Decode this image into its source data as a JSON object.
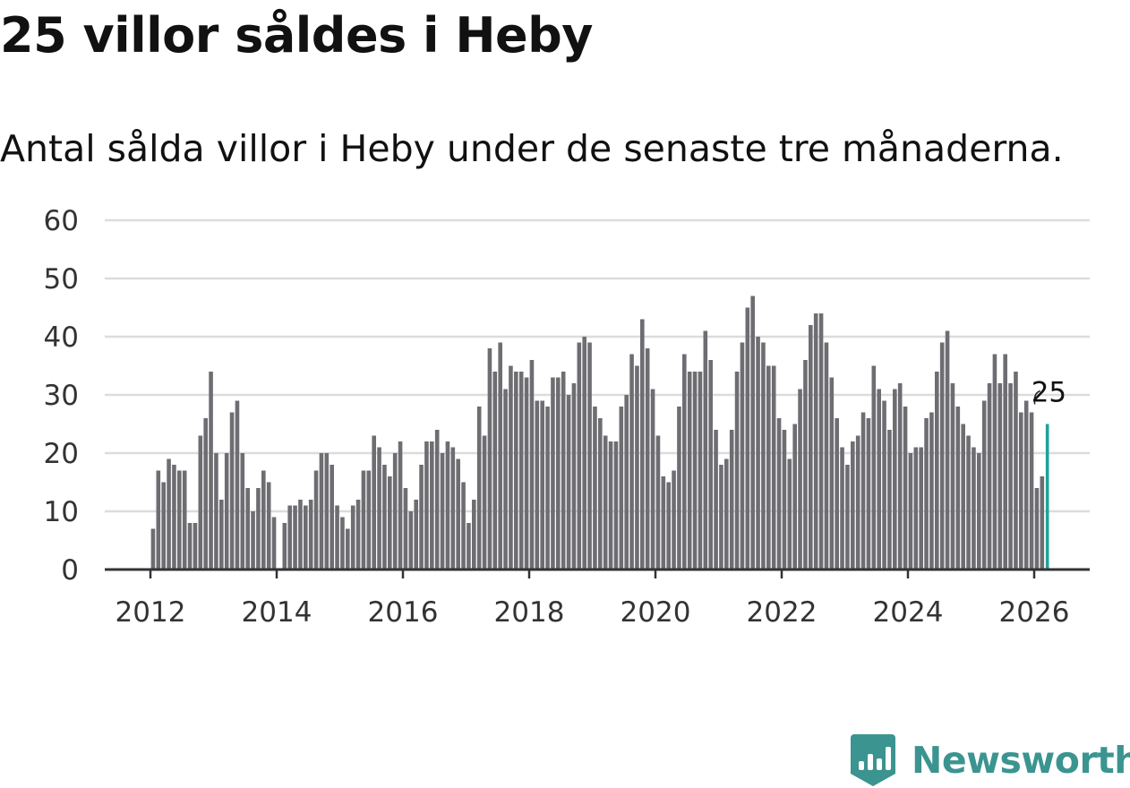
{
  "title": "25 villor såldes i Heby",
  "subtitle": "Antal sålda villor i Heby under de senaste tre månaderna.",
  "brand": {
    "name": "Newsworthy",
    "logo_icon": "newsworthy-logo-icon"
  },
  "colors": {
    "bar": "#6e6d72",
    "highlight": "#21a19a",
    "grid": "#dcdcdc",
    "axis": "#333333",
    "brand": "#3b9490"
  },
  "chart_data": {
    "type": "bar",
    "title": "25 villor såldes i Heby",
    "xlabel": "",
    "ylabel": "",
    "ylim": [
      0,
      60
    ],
    "yticks": [
      0,
      10,
      20,
      30,
      40,
      50,
      60
    ],
    "xticks": [
      2012,
      2014,
      2016,
      2018,
      2020,
      2022,
      2024,
      2026
    ],
    "start": "2012-01",
    "unit": "month",
    "last_label": "25",
    "values": [
      7,
      17,
      15,
      19,
      18,
      17,
      17,
      8,
      8,
      23,
      26,
      34,
      20,
      12,
      20,
      27,
      29,
      20,
      14,
      10,
      14,
      17,
      15,
      9,
      0,
      8,
      11,
      11,
      12,
      11,
      12,
      17,
      20,
      20,
      18,
      11,
      9,
      7,
      11,
      12,
      17,
      17,
      23,
      21,
      18,
      16,
      20,
      22,
      14,
      10,
      12,
      18,
      22,
      22,
      24,
      20,
      22,
      21,
      19,
      15,
      8,
      12,
      28,
      23,
      38,
      34,
      39,
      31,
      35,
      34,
      34,
      33,
      36,
      29,
      29,
      28,
      33,
      33,
      34,
      30,
      32,
      39,
      40,
      39,
      28,
      26,
      23,
      22,
      22,
      28,
      30,
      37,
      35,
      43,
      38,
      31,
      23,
      16,
      15,
      17,
      28,
      37,
      34,
      34,
      34,
      41,
      36,
      24,
      18,
      19,
      24,
      34,
      39,
      45,
      47,
      40,
      39,
      35,
      35,
      26,
      24,
      19,
      25,
      31,
      36,
      42,
      44,
      44,
      39,
      33,
      26,
      21,
      18,
      22,
      23,
      27,
      26,
      35,
      31,
      29,
      24,
      31,
      32,
      28,
      20,
      21,
      21,
      26,
      27,
      34,
      39,
      41,
      32,
      28,
      25,
      23,
      21,
      20,
      29,
      32,
      37,
      32,
      37,
      32,
      34,
      27,
      29,
      27,
      14,
      16,
      25
    ]
  }
}
